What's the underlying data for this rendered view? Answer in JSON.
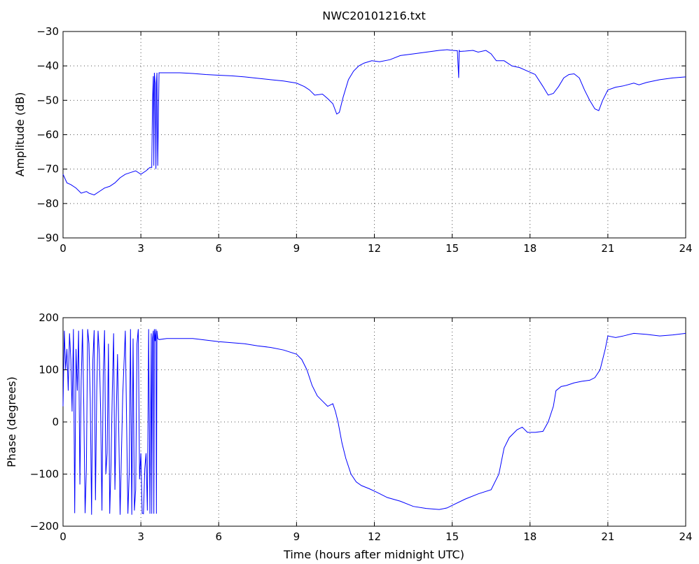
{
  "chart_data": [
    {
      "type": "line",
      "title": "NWC20101216.txt",
      "xlabel": "",
      "ylabel": "Amplitude (dB)",
      "xlim": [
        0,
        24
      ],
      "ylim": [
        -90,
        -30
      ],
      "xticks": [
        0,
        3,
        6,
        9,
        12,
        15,
        18,
        21,
        24
      ],
      "yticks": [
        -90,
        -80,
        -70,
        -60,
        -50,
        -40,
        -30
      ],
      "grid": true,
      "series": [
        {
          "color": "#0000ff",
          "x": [
            0,
            0.15,
            0.3,
            0.5,
            0.7,
            0.9,
            1.0,
            1.2,
            1.4,
            1.6,
            1.8,
            2.0,
            2.2,
            2.4,
            2.6,
            2.8,
            3.0,
            3.2,
            3.35,
            3.42,
            3.45,
            3.48,
            3.5,
            3.52,
            3.55,
            3.58,
            3.6,
            3.62,
            3.65,
            3.7,
            4.0,
            4.5,
            5.0,
            5.5,
            6.0,
            6.5,
            7.0,
            7.5,
            8.0,
            8.5,
            9.0,
            9.3,
            9.5,
            9.7,
            10.0,
            10.2,
            10.4,
            10.55,
            10.65,
            10.8,
            11.0,
            11.2,
            11.4,
            11.6,
            11.9,
            12.2,
            12.6,
            13.0,
            13.5,
            14.0,
            14.5,
            14.8,
            15.0,
            15.2,
            15.25,
            15.27,
            15.3,
            15.5,
            15.8,
            16.0,
            16.3,
            16.5,
            16.7,
            17.0,
            17.3,
            17.6,
            17.9,
            18.2,
            18.5,
            18.7,
            18.9,
            19.1,
            19.3,
            19.5,
            19.7,
            19.9,
            20.1,
            20.3,
            20.5,
            20.65,
            20.8,
            21.0,
            21.3,
            21.6,
            22.0,
            22.2,
            22.5,
            23.0,
            23.5,
            24.0
          ],
          "values": [
            -71.5,
            -74,
            -74.5,
            -75.5,
            -77,
            -76.5,
            -77,
            -77.5,
            -76.5,
            -75.5,
            -75,
            -74,
            -72.5,
            -71.5,
            -71,
            -70.5,
            -71.5,
            -70.5,
            -69.5,
            -69.5,
            -50,
            -43,
            -69,
            -42,
            -45,
            -70,
            -45,
            -42,
            -69,
            -42,
            -42,
            -42,
            -42.2,
            -42.5,
            -42.7,
            -42.9,
            -43.2,
            -43.6,
            -44,
            -44.4,
            -45,
            -46,
            -47,
            -48.5,
            -48.2,
            -49.5,
            -51,
            -54,
            -53.5,
            -49,
            -44,
            -41.5,
            -40,
            -39.2,
            -38.5,
            -38.8,
            -38.2,
            -37,
            -36.5,
            -36,
            -35.5,
            -35.3,
            -35.5,
            -35.6,
            -43.5,
            -35.5,
            -35.8,
            -35.7,
            -35.5,
            -36,
            -35.5,
            -36.5,
            -38.5,
            -38.5,
            -40,
            -40.5,
            -41.5,
            -42.5,
            -46,
            -48.5,
            -48,
            -46,
            -43.5,
            -42.5,
            -42.3,
            -43.5,
            -47,
            -50,
            -52.5,
            -53,
            -50,
            -47,
            -46.2,
            -45.8,
            -45,
            -45.5,
            -44.8,
            -44,
            -43.5,
            -43.2
          ]
        }
      ]
    },
    {
      "type": "line",
      "title": "",
      "xlabel": "Time (hours after midnight UTC)",
      "ylabel": "Phase (degrees)",
      "xlim": [
        0,
        24
      ],
      "ylim": [
        -200,
        200
      ],
      "xticks": [
        0,
        3,
        6,
        9,
        12,
        15,
        18,
        21,
        24
      ],
      "yticks": [
        -200,
        -100,
        0,
        100,
        200
      ],
      "grid": true,
      "series": [
        {
          "color": "#0000ff",
          "x": [
            0.0,
            0.05,
            0.1,
            0.15,
            0.2,
            0.25,
            0.3,
            0.35,
            0.4,
            0.45,
            0.5,
            0.55,
            0.6,
            0.65,
            0.7,
            0.75,
            0.8,
            0.85,
            0.9,
            0.95,
            1.0,
            1.05,
            1.1,
            1.15,
            1.2,
            1.25,
            1.3,
            1.35,
            1.4,
            1.45,
            1.5,
            1.55,
            1.6,
            1.65,
            1.7,
            1.75,
            1.8,
            1.85,
            1.9,
            1.95,
            2.0,
            2.05,
            2.1,
            2.2,
            2.3,
            2.4,
            2.5,
            2.55,
            2.6,
            2.65,
            2.7,
            2.75,
            2.8,
            2.85,
            2.9,
            2.95,
            3.0,
            3.05,
            3.1,
            3.15,
            3.2,
            3.25,
            3.3,
            3.35,
            3.4,
            3.42,
            3.45,
            3.48,
            3.5,
            3.52,
            3.55,
            3.58,
            3.6,
            3.62,
            3.65,
            3.7,
            4.0,
            4.5,
            5.0,
            5.5,
            6.0,
            6.5,
            7.0,
            7.5,
            8.0,
            8.5,
            9.0,
            9.2,
            9.4,
            9.6,
            9.8,
            10.0,
            10.2,
            10.4,
            10.5,
            10.6,
            10.75,
            10.9,
            11.1,
            11.3,
            11.5,
            11.8,
            12.1,
            12.5,
            13.0,
            13.5,
            14.0,
            14.5,
            14.8,
            15.0,
            15.5,
            16.0,
            16.5,
            16.8,
            17.0,
            17.2,
            17.5,
            17.7,
            17.9,
            18.2,
            18.5,
            18.7,
            18.9,
            19.0,
            19.2,
            19.4,
            19.7,
            20.0,
            20.3,
            20.5,
            20.7,
            20.9,
            21.0,
            21.3,
            21.6,
            22.0,
            22.5,
            23.0,
            23.5,
            24.0
          ],
          "values": [
            30,
            175,
            100,
            140,
            60,
            170,
            120,
            20,
            178,
            -175,
            140,
            60,
            175,
            -120,
            80,
            178,
            30,
            -175,
            -90,
            178,
            150,
            40,
            -178,
            120,
            176,
            -150,
            60,
            175,
            130,
            20,
            -170,
            90,
            176,
            -100,
            -60,
            150,
            -176,
            -80,
            60,
            170,
            -130,
            10,
            130,
            -178,
            50,
            175,
            -176,
            -100,
            178,
            -178,
            160,
            -170,
            -130,
            150,
            178,
            -110,
            -60,
            -175,
            -176,
            -90,
            -60,
            -170,
            178,
            -176,
            170,
            -176,
            160,
            175,
            -176,
            178,
            155,
            178,
            -176,
            175,
            160,
            158,
            160,
            160,
            160,
            157,
            154,
            152,
            150,
            146,
            143,
            138,
            130,
            120,
            100,
            70,
            50,
            40,
            30,
            35,
            20,
            0,
            -40,
            -70,
            -100,
            -115,
            -122,
            -128,
            -135,
            -145,
            -152,
            -162,
            -166,
            -168,
            -165,
            -160,
            -148,
            -138,
            -130,
            -100,
            -50,
            -30,
            -15,
            -10,
            -20,
            -20,
            -18,
            0,
            30,
            60,
            68,
            70,
            75,
            78,
            80,
            85,
            100,
            140,
            165,
            162,
            165,
            170,
            168,
            165,
            167,
            170
          ]
        }
      ]
    }
  ]
}
